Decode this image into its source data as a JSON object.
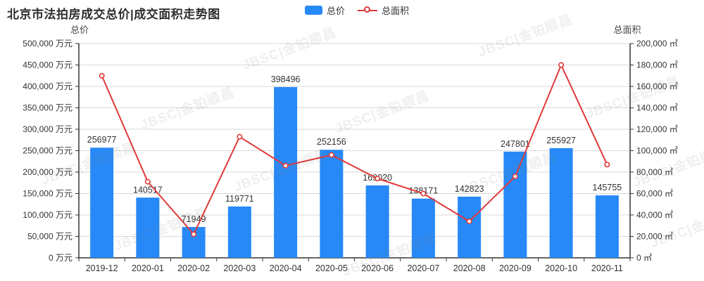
{
  "title": "北京市法拍房成交总价|成交面积走势图",
  "watermark_text": "JBSC|金铂顺昌",
  "legend": {
    "items": [
      {
        "label": "总价",
        "type": "bar",
        "color": "#2789f7"
      },
      {
        "label": "总面积",
        "type": "line",
        "color": "#e13939"
      }
    ]
  },
  "colors": {
    "bar": "#2789f7",
    "line": "#e13939",
    "grid": "#d9d9d9",
    "axis": "#333333",
    "tick_text": "#333333",
    "label_text": "#333333"
  },
  "chart_data": {
    "type": "bar",
    "title": "北京市法拍房成交总价|成交面积走势图",
    "categories": [
      "2019-12",
      "2020-01",
      "2020-02",
      "2020-03",
      "2020-04",
      "2020-05",
      "2020-06",
      "2020-07",
      "2020-08",
      "2020-09",
      "2020-10",
      "2020-11"
    ],
    "series": [
      {
        "name": "总价",
        "type": "bar",
        "axis": "left",
        "unit": "万元",
        "values": [
          256977,
          140517,
          71949,
          119771,
          398496,
          252156,
          169020,
          138171,
          142823,
          247801,
          255927,
          145755
        ],
        "data_labels": true
      },
      {
        "name": "总面积",
        "type": "line",
        "axis": "right",
        "unit": "㎡",
        "values": [
          170000,
          71000,
          22000,
          113000,
          86000,
          96000,
          74000,
          60000,
          34000,
          76000,
          180000,
          87000
        ],
        "values_estimated_from_pixels": true
      }
    ],
    "left_axis": {
      "name": "总价",
      "unit": "万元",
      "min": 0,
      "max": 500000,
      "step": 50000
    },
    "right_axis": {
      "name": "总面积",
      "unit": "㎡",
      "min": 0,
      "max": 200000,
      "step": 20000
    },
    "grid": true,
    "legend_position": "top-center"
  }
}
